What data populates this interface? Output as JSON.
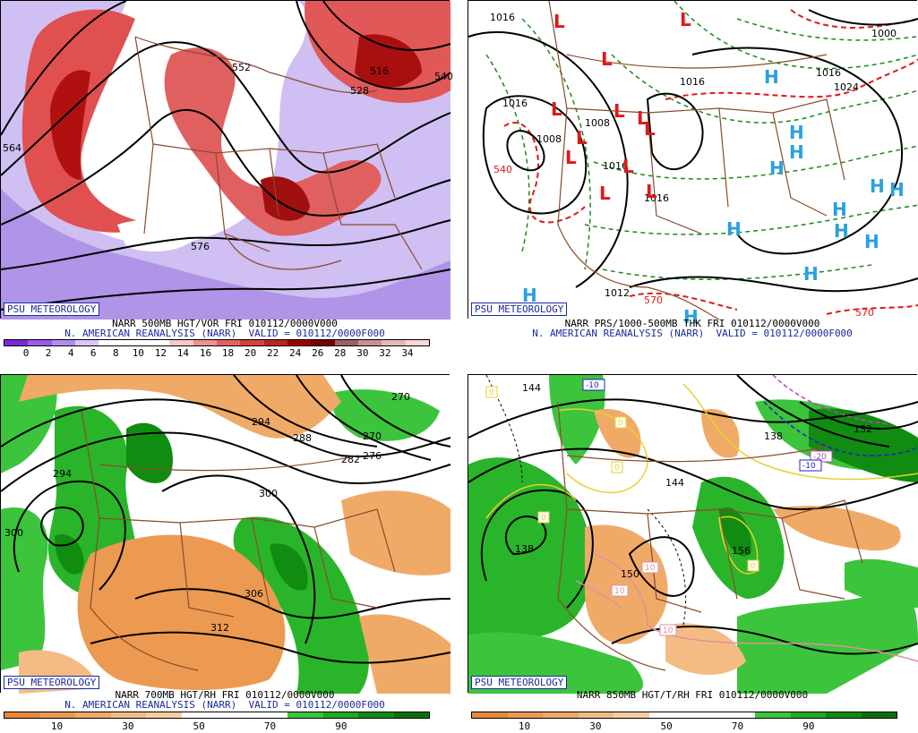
{
  "brand": "PSU METEOROLOGY",
  "panels": [
    {
      "caption1": "NARR 500MB HGT/VOR FRI 010112/0000V000",
      "caption2": "N. AMERICAN REANALYSIS (NARR)  VALID = 010112/0000F000",
      "colorbar": {
        "colors": [
          "#7a2ad8",
          "#9a5ae8",
          "#b48cf0",
          "#d8c8f8",
          "#ffffff",
          "#ffffff",
          "#ffffff",
          "#f8c8c8",
          "#f09090",
          "#e86060",
          "#d84040",
          "#c02020",
          "#a00000",
          "#780000",
          "#a06060",
          "#c89090",
          "#e8b8b8",
          "#f8d8d8"
        ],
        "ticks": [
          "0",
          "2",
          "4",
          "6",
          "8",
          "10",
          "12",
          "14",
          "16",
          "18",
          "20",
          "22",
          "24",
          "26",
          "28",
          "30",
          "32",
          "34"
        ]
      },
      "contour_labels": [
        "552",
        "516",
        "528",
        "540",
        "564",
        "576"
      ]
    },
    {
      "caption1": "NARR PRS/1000-500MB THK FRI 010112/0000V000",
      "caption2": "N. AMERICAN REANALYSIS (NARR)  VALID = 010112/0000F000",
      "contour_labels": [
        "1016",
        "1008",
        "1016",
        "1016",
        "1016",
        "1008",
        "1016",
        "1024",
        "1012",
        "1016",
        "1000",
        "570",
        "540",
        "570"
      ],
      "low_symbol": "L",
      "high_symbol": "H",
      "symbol_colors": {
        "low": "#e01818",
        "high": "#2aa0e0"
      }
    },
    {
      "caption1": "NARR 700MB HGT/RH FRI 010112/0000V000",
      "caption2": "N. AMERICAN REANALYSIS (NARR)  VALID = 010112/0000F000",
      "colorbar": {
        "colors": [
          "#e8883a",
          "#ec9a52",
          "#f0aa68",
          "#f4bc84",
          "#f8cea0",
          "#ffffff",
          "#ffffff",
          "#ffffff",
          "#3cc43c",
          "#20a820",
          "#108c10",
          "#0a700a"
        ],
        "ticks": [
          "10",
          "30",
          "50",
          "70",
          "90"
        ]
      },
      "contour_labels": [
        "270",
        "294",
        "288",
        "276",
        "282",
        "270",
        "294",
        "300",
        "300",
        "306",
        "312"
      ]
    },
    {
      "caption1": "NARR 850MB HGT/T/RH FRI 010112/0000V000",
      "caption2": "",
      "colorbar": {
        "colors": [
          "#e8883a",
          "#ec9a52",
          "#f0aa68",
          "#f4bc84",
          "#f8cea0",
          "#ffffff",
          "#ffffff",
          "#ffffff",
          "#3cc43c",
          "#20a820",
          "#108c10",
          "#0a700a"
        ],
        "ticks": [
          "10",
          "30",
          "50",
          "70",
          "90"
        ]
      },
      "contour_labels": [
        "144",
        "138",
        "144",
        "150",
        "156",
        "132",
        "138"
      ],
      "temp_tags": [
        "-10",
        "-20",
        "-10",
        "0",
        "0",
        "0",
        "0",
        "0",
        "10",
        "10",
        "10"
      ]
    }
  ]
}
